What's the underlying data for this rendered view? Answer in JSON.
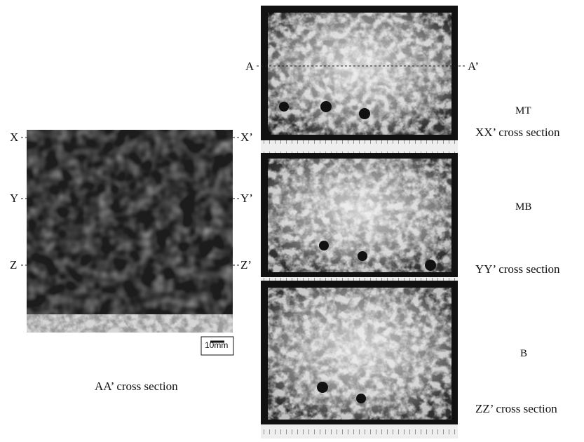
{
  "left_panel": {
    "labels_left": [
      "X",
      "Y",
      "Z"
    ],
    "labels_right": [
      "X’",
      "Y’",
      "Z’"
    ],
    "scale_bar": "10mm",
    "caption": "AA’ cross section"
  },
  "right_panels": [
    {
      "position": "MT",
      "caption": "XX’ cross section"
    },
    {
      "position": "MB",
      "caption": "YY’ cross section"
    },
    {
      "position": "B",
      "caption": "ZZ’ cross section"
    }
  ],
  "section_line": {
    "start": "A",
    "end": "A’"
  }
}
